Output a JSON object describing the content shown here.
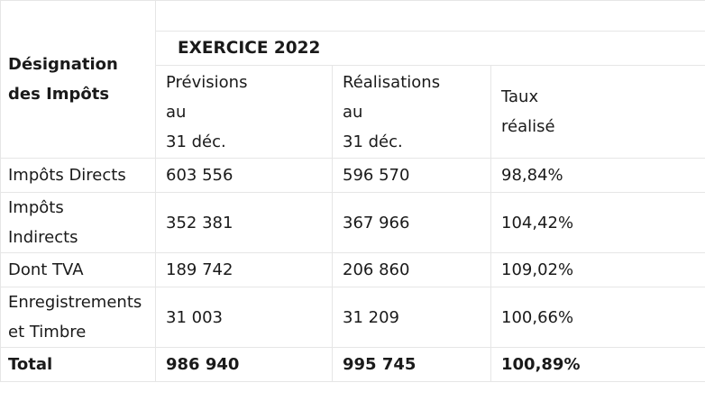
{
  "table": {
    "designation_header": [
      "Désignation",
      "des Impôts"
    ],
    "exercice_header": "EXERCICE 2022",
    "columns": {
      "previsions": [
        "Prévisions",
        "au",
        "31 déc."
      ],
      "realisations": [
        "Réalisations",
        "au",
        "31 déc."
      ],
      "taux": [
        "Taux",
        "réalisé"
      ]
    },
    "rows": [
      {
        "label": [
          "Impôts Directs"
        ],
        "previsions": "603 556",
        "realisations": "596 570",
        "taux": "98,84%"
      },
      {
        "label": [
          "Impôts",
          "Indirects"
        ],
        "previsions": "352 381",
        "realisations": "367 966",
        "taux": "104,42%"
      },
      {
        "label": [
          "Dont TVA"
        ],
        "previsions": "189 742",
        "realisations": "206 860",
        "taux": "109,02%"
      },
      {
        "label": [
          "Enregistrements",
          "et Timbre"
        ],
        "previsions": "31 003",
        "realisations": "31 209",
        "taux": "100,66%"
      }
    ],
    "total": {
      "label": "Total",
      "previsions": "986 940",
      "realisations": "995 745",
      "taux": "100,89%"
    }
  }
}
